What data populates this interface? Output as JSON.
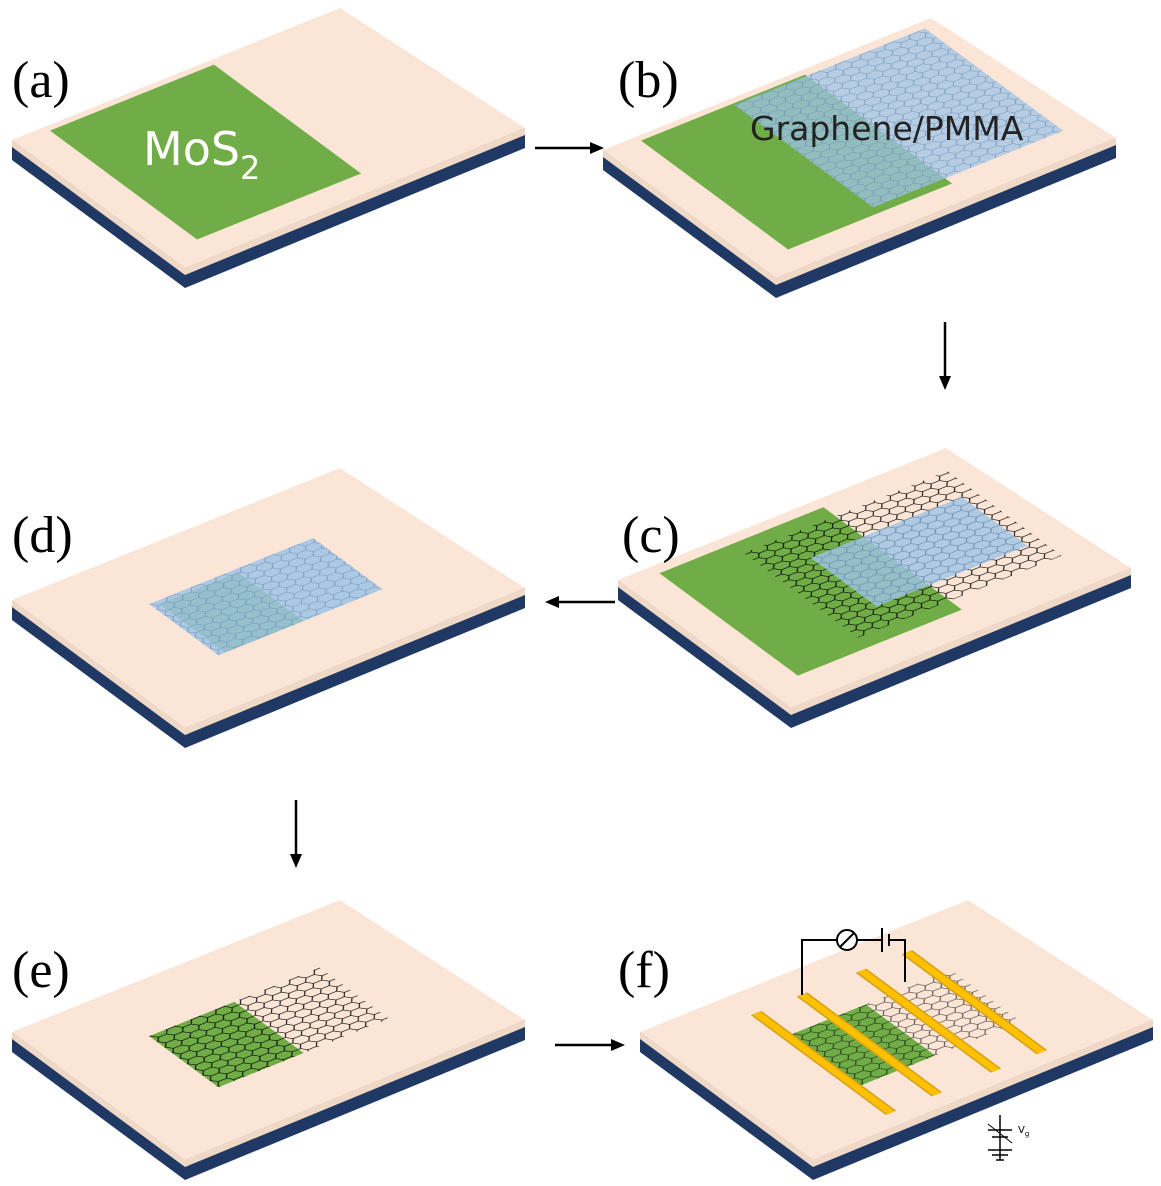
{
  "panels": [
    {
      "label": "(a)"
    },
    {
      "label": "(b)"
    },
    {
      "label": "(c)"
    },
    {
      "label": "(d)"
    },
    {
      "label": "(e)"
    },
    {
      "label": "(f)"
    }
  ],
  "material_label": {
    "text": "MoS",
    "subscript": "2"
  },
  "film_label": "Graphene/PMMA",
  "gate_label": {
    "text": "V",
    "subscript": "g"
  }
}
